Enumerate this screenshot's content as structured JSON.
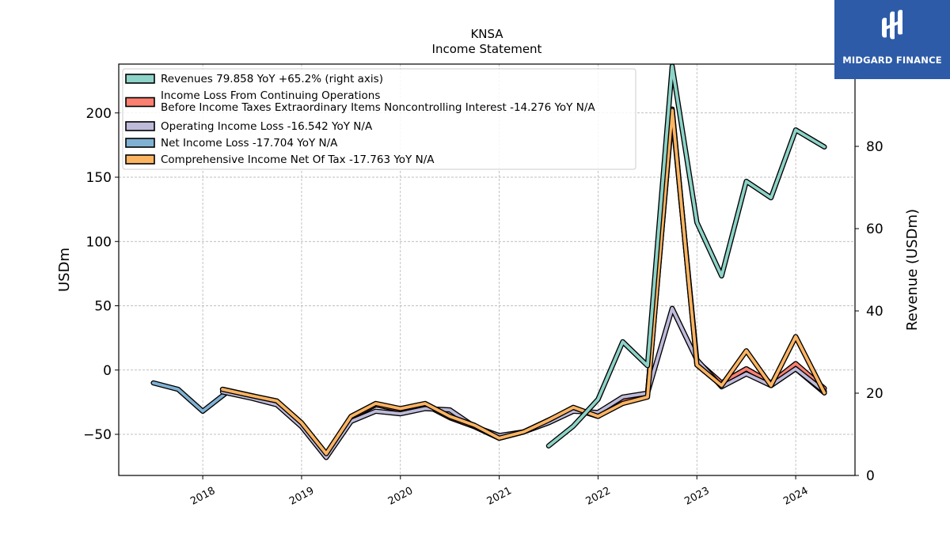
{
  "chart_data": {
    "type": "line",
    "title": "KNSA",
    "subtitle": "Income Statement",
    "ylabel": "USDm",
    "y2label": "Revenue (USDm)",
    "ylim": [
      -82,
      238
    ],
    "y2lim": [
      0,
      100
    ],
    "yticks": [
      -50,
      0,
      50,
      100,
      150,
      200
    ],
    "ytick_labels": [
      "−50",
      "0",
      "50",
      "100",
      "150",
      "200"
    ],
    "y2ticks": [
      0,
      20,
      40,
      60,
      80,
      100
    ],
    "xlim": [
      2017.15,
      2024.6
    ],
    "xticks": [
      2018,
      2019,
      2020,
      2021,
      2022,
      2023,
      2024
    ],
    "xtick_labels": [
      "2018",
      "2019",
      "2020",
      "2021",
      "2022",
      "2023",
      "2024"
    ],
    "grid": true,
    "legend_position": "top-left",
    "series": [
      {
        "name": "Revenues  79.858 YoY +65.2% (right axis)",
        "color": "#8dd3c7",
        "axis": "right",
        "points": [
          [
            2021.5,
            7.2
          ],
          [
            2021.75,
            12.0
          ],
          [
            2022.0,
            18.5
          ],
          [
            2022.25,
            32.5
          ],
          [
            2022.5,
            26.7
          ],
          [
            2022.75,
            99.5
          ],
          [
            2023.0,
            61.5
          ],
          [
            2023.25,
            48.5
          ],
          [
            2023.5,
            71.5
          ],
          [
            2023.75,
            67.5
          ],
          [
            2024.0,
            84.0
          ],
          [
            2024.29,
            79.858
          ]
        ]
      },
      {
        "name": "Income Loss From Continuing Operations\nBefore Income Taxes Extraordinary Items Noncontrolling Interest  -14.276 YoY N/A",
        "color": "#fb8072",
        "axis": "left",
        "points": [
          [
            2018.2,
            -15
          ],
          [
            2018.5,
            -20
          ],
          [
            2018.75,
            -25
          ],
          [
            2019.0,
            -42
          ],
          [
            2019.25,
            -67
          ],
          [
            2019.5,
            -37
          ],
          [
            2019.75,
            -27
          ],
          [
            2020.0,
            -31
          ],
          [
            2020.25,
            -27
          ],
          [
            2020.5,
            -37
          ],
          [
            2020.75,
            -44
          ],
          [
            2021.0,
            -53
          ],
          [
            2021.25,
            -48
          ],
          [
            2021.5,
            -39
          ],
          [
            2021.75,
            -30
          ],
          [
            2022.0,
            -36
          ],
          [
            2022.25,
            -23
          ],
          [
            2022.5,
            -19
          ],
          [
            2022.75,
            200
          ],
          [
            2023.0,
            7
          ],
          [
            2023.25,
            -10
          ],
          [
            2023.5,
            1
          ],
          [
            2023.75,
            -10
          ],
          [
            2024.0,
            5
          ],
          [
            2024.29,
            -14.276
          ]
        ]
      },
      {
        "name": "Operating Income Loss  -16.542 YoY N/A",
        "color": "#bebada",
        "axis": "left",
        "points": [
          [
            2018.2,
            -17
          ],
          [
            2018.5,
            -22
          ],
          [
            2018.75,
            -27
          ],
          [
            2019.0,
            -44
          ],
          [
            2019.25,
            -68
          ],
          [
            2019.5,
            -40
          ],
          [
            2019.75,
            -32
          ],
          [
            2020.0,
            -34
          ],
          [
            2020.25,
            -30
          ],
          [
            2020.5,
            -31
          ],
          [
            2020.75,
            -44
          ],
          [
            2021.0,
            -51
          ],
          [
            2021.25,
            -48
          ],
          [
            2021.5,
            -41
          ],
          [
            2021.75,
            -32
          ],
          [
            2022.0,
            -33
          ],
          [
            2022.25,
            -21
          ],
          [
            2022.5,
            -18
          ],
          [
            2022.75,
            48
          ],
          [
            2023.0,
            8
          ],
          [
            2023.25,
            -13
          ],
          [
            2023.5,
            -3
          ],
          [
            2023.75,
            -12
          ],
          [
            2024.0,
            1
          ],
          [
            2024.29,
            -16.542
          ]
        ]
      },
      {
        "name": "Net Income Loss  -17.704 YoY N/A",
        "color": "#80b1d3",
        "axis": "left",
        "points": [
          [
            2017.5,
            -10
          ],
          [
            2017.75,
            -15
          ],
          [
            2018.0,
            -32
          ],
          [
            2018.25,
            -17
          ],
          [
            2018.5,
            -21
          ],
          [
            2018.75,
            -26
          ],
          [
            2019.0,
            -43
          ],
          [
            2019.25,
            -67
          ],
          [
            2019.5,
            -37
          ],
          [
            2019.75,
            -27
          ],
          [
            2020.0,
            -31
          ],
          [
            2020.25,
            -27
          ],
          [
            2020.5,
            -37
          ],
          [
            2020.75,
            -44
          ],
          [
            2021.0,
            -53
          ],
          [
            2021.25,
            -48
          ],
          [
            2021.5,
            -39
          ],
          [
            2021.75,
            -30
          ],
          [
            2022.0,
            -36
          ],
          [
            2022.25,
            -23
          ],
          [
            2022.5,
            -19
          ],
          [
            2022.75,
            203
          ],
          [
            2023.0,
            4
          ],
          [
            2023.25,
            -12
          ],
          [
            2023.5,
            0
          ],
          [
            2023.75,
            -12
          ],
          [
            2024.0,
            1
          ],
          [
            2024.29,
            -17.704
          ]
        ]
      },
      {
        "name": "Comprehensive Income Net Of Tax  -17.763 YoY N/A",
        "color": "#fdb462",
        "axis": "left",
        "points": [
          [
            2018.2,
            -15
          ],
          [
            2018.5,
            -20
          ],
          [
            2018.75,
            -24
          ],
          [
            2019.0,
            -41
          ],
          [
            2019.25,
            -65
          ],
          [
            2019.5,
            -36
          ],
          [
            2019.75,
            -26
          ],
          [
            2020.0,
            -30
          ],
          [
            2020.25,
            -26
          ],
          [
            2020.5,
            -36
          ],
          [
            2020.75,
            -43
          ],
          [
            2021.0,
            -53
          ],
          [
            2021.25,
            -48
          ],
          [
            2021.5,
            -39
          ],
          [
            2021.75,
            -29
          ],
          [
            2022.0,
            -36
          ],
          [
            2022.25,
            -26
          ],
          [
            2022.5,
            -21
          ],
          [
            2022.75,
            202
          ],
          [
            2023.0,
            4
          ],
          [
            2023.25,
            -12
          ],
          [
            2023.5,
            15
          ],
          [
            2023.75,
            -12
          ],
          [
            2024.0,
            26
          ],
          [
            2024.29,
            -17.763
          ]
        ]
      }
    ]
  },
  "logo": {
    "text": "MIDGARD FINANCE",
    "icon": "midgard-logo-icon",
    "background": "#2d5ba8"
  }
}
